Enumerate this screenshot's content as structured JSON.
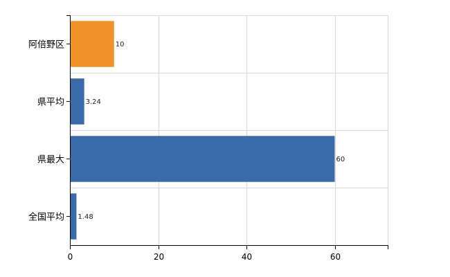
{
  "chart_data": {
    "type": "bar",
    "orientation": "horizontal",
    "categories": [
      "阿倍野区",
      "県平均",
      "県最大",
      "全国平均"
    ],
    "values": [
      10,
      3.24,
      60,
      1.48
    ],
    "data_labels": [
      "10",
      "3.24",
      "60",
      "1.48"
    ],
    "bar_colors": [
      "#f0922b",
      "#3b6aa8",
      "#3b6aa8",
      "#3b6aa8"
    ],
    "xlim": [
      0,
      72
    ],
    "xticks": [
      0,
      20,
      40,
      60
    ],
    "xtick_labels": [
      "0",
      "20",
      "40",
      "60"
    ],
    "grid": true,
    "legend": "none"
  }
}
